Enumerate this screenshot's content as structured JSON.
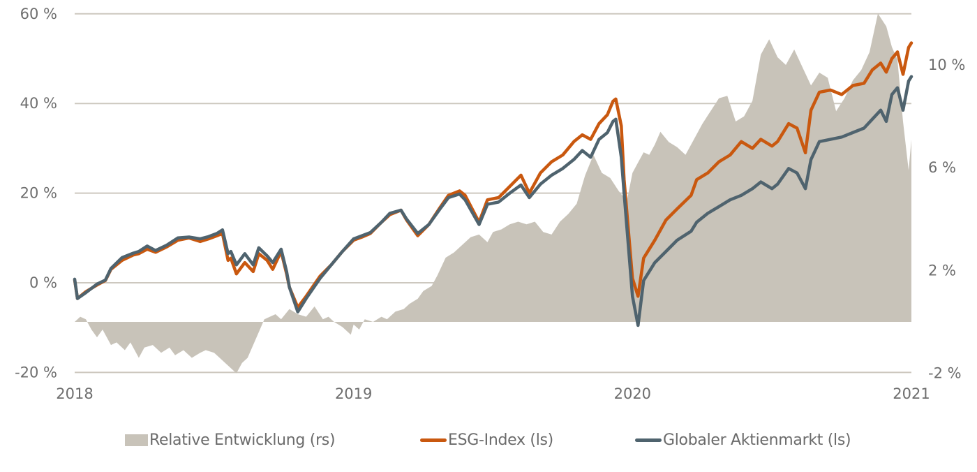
{
  "chart_data": {
    "type": "line",
    "title": "",
    "xlabel": "",
    "ylabel_left": "",
    "ylabel_right": "",
    "x_range": [
      2018.0,
      2021.0
    ],
    "x_ticks": [
      {
        "value": 2018,
        "label": "2018"
      },
      {
        "value": 2019,
        "label": "2019"
      },
      {
        "value": 2020,
        "label": "2020"
      },
      {
        "value": 2021,
        "label": "2021"
      }
    ],
    "y_left": {
      "range": [
        -20,
        60
      ],
      "ticks": [
        {
          "value": 60,
          "label": "60 %"
        },
        {
          "value": 40,
          "label": "40 %"
        },
        {
          "value": 20,
          "label": "20 %"
        },
        {
          "value": 0,
          "label": "0 %"
        },
        {
          "value": -20,
          "label": "-20 %"
        }
      ]
    },
    "y_right": {
      "range": [
        -2,
        12.5
      ],
      "ticks": [
        {
          "value": 10,
          "label": "10 %"
        },
        {
          "value": 6,
          "label": "6 %"
        },
        {
          "value": 2,
          "label": "2 %"
        },
        {
          "value": -2,
          "label": "-2 %"
        }
      ]
    },
    "grid": true,
    "legend_position": "bottom",
    "colors": {
      "relative": "#c8c3b9",
      "esg": "#c9580f",
      "global": "#4f636e",
      "grid": "#cdc8bf",
      "tick_text": "#6e6e6e"
    },
    "series": [
      {
        "name": "Relative Entwicklung (rs)",
        "type": "area",
        "axis": "right",
        "x": [
          2018.0,
          2018.02,
          2018.04,
          2018.06,
          2018.08,
          2018.1,
          2018.13,
          2018.15,
          2018.18,
          2018.2,
          2018.23,
          2018.25,
          2018.28,
          2018.31,
          2018.34,
          2018.36,
          2018.39,
          2018.42,
          2018.45,
          2018.47,
          2018.5,
          2018.53,
          2018.55,
          2018.58,
          2018.6,
          2018.62,
          2018.64,
          2018.66,
          2018.68,
          2018.7,
          2018.72,
          2018.74,
          2018.77,
          2018.8,
          2018.83,
          2018.86,
          2018.89,
          2018.91,
          2018.93,
          2018.96,
          2018.99,
          2019.0,
          2019.02,
          2019.04,
          2019.07,
          2019.1,
          2019.12,
          2019.15,
          2019.18,
          2019.2,
          2019.23,
          2019.25,
          2019.28,
          2019.3,
          2019.33,
          2019.36,
          2019.39,
          2019.42,
          2019.45,
          2019.48,
          2019.5,
          2019.53,
          2019.56,
          2019.59,
          2019.62,
          2019.65,
          2019.68,
          2019.71,
          2019.74,
          2019.77,
          2019.8,
          2019.83,
          2019.86,
          2019.89,
          2019.92,
          2019.95,
          2019.98,
          2020.0,
          2020.02,
          2020.04,
          2020.06,
          2020.08,
          2020.1,
          2020.13,
          2020.16,
          2020.19,
          2020.22,
          2020.25,
          2020.28,
          2020.31,
          2020.34,
          2020.37,
          2020.4,
          2020.43,
          2020.46,
          2020.49,
          2020.52,
          2020.55,
          2020.58,
          2020.61,
          2020.64,
          2020.67,
          2020.7,
          2020.73,
          2020.76,
          2020.79,
          2020.82,
          2020.85,
          2020.88,
          2020.91,
          2020.93,
          2020.95,
          2020.97,
          2020.99,
          2021.0
        ],
        "values": [
          0.0,
          0.2,
          0.1,
          -0.3,
          -0.6,
          -0.3,
          -0.9,
          -0.8,
          -1.1,
          -0.8,
          -1.4,
          -1.0,
          -0.9,
          -1.2,
          -1.0,
          -1.3,
          -1.1,
          -1.4,
          -1.2,
          -1.1,
          -1.2,
          -1.5,
          -1.7,
          -2.0,
          -1.6,
          -1.4,
          -0.9,
          -0.4,
          0.1,
          0.2,
          0.3,
          0.1,
          0.5,
          0.3,
          0.2,
          0.6,
          0.1,
          0.2,
          0.0,
          -0.2,
          -0.5,
          -0.1,
          -0.3,
          0.1,
          0.0,
          0.2,
          0.1,
          0.4,
          0.5,
          0.7,
          0.9,
          1.2,
          1.4,
          1.8,
          2.5,
          2.7,
          3.0,
          3.3,
          3.4,
          3.1,
          3.5,
          3.6,
          3.8,
          3.9,
          3.8,
          3.9,
          3.5,
          3.4,
          3.9,
          4.2,
          4.6,
          5.7,
          6.5,
          5.8,
          5.6,
          5.1,
          4.7,
          5.8,
          6.2,
          6.6,
          6.5,
          6.9,
          7.4,
          7.0,
          6.8,
          6.5,
          7.1,
          7.7,
          8.2,
          8.7,
          8.8,
          7.8,
          8.0,
          8.6,
          10.4,
          11.0,
          10.3,
          10.0,
          10.6,
          9.9,
          9.2,
          9.7,
          9.5,
          8.2,
          8.7,
          9.4,
          9.8,
          10.5,
          12.0,
          11.5,
          10.7,
          10.2,
          7.8,
          5.9,
          7.1
        ]
      },
      {
        "name": "ESG-Index (ls)",
        "type": "line",
        "axis": "left",
        "x": [
          2018.0,
          2018.01,
          2018.04,
          2018.08,
          2018.11,
          2018.13,
          2018.17,
          2018.21,
          2018.23,
          2018.26,
          2018.29,
          2018.33,
          2018.37,
          2018.41,
          2018.45,
          2018.48,
          2018.51,
          2018.53,
          2018.55,
          2018.56,
          2018.58,
          2018.61,
          2018.64,
          2018.66,
          2018.69,
          2018.71,
          2018.74,
          2018.76,
          2018.77,
          2018.8,
          2018.83,
          2018.88,
          2018.92,
          2018.96,
          2019.0,
          2019.03,
          2019.06,
          2019.1,
          2019.13,
          2019.17,
          2019.19,
          2019.23,
          2019.27,
          2019.31,
          2019.34,
          2019.38,
          2019.4,
          2019.45,
          2019.48,
          2019.52,
          2019.56,
          2019.6,
          2019.63,
          2019.67,
          2019.71,
          2019.75,
          2019.79,
          2019.82,
          2019.85,
          2019.88,
          2019.91,
          2019.93,
          2019.94,
          2019.96,
          2019.97,
          2020.0,
          2020.02,
          2020.04,
          2020.08,
          2020.12,
          2020.16,
          2020.21,
          2020.23,
          2020.27,
          2020.31,
          2020.35,
          2020.39,
          2020.43,
          2020.46,
          2020.5,
          2020.52,
          2020.56,
          2020.59,
          2020.62,
          2020.64,
          2020.67,
          2020.71,
          2020.75,
          2020.79,
          2020.83,
          2020.86,
          2020.89,
          2020.91,
          2020.93,
          2020.95,
          2020.97,
          2020.99,
          2021.0
        ],
        "values": [
          0.6,
          -3.5,
          -2.0,
          -0.5,
          0.5,
          3.0,
          5.0,
          6.2,
          6.5,
          7.5,
          6.8,
          8.0,
          9.5,
          10.0,
          9.2,
          9.8,
          10.5,
          11.0,
          5.0,
          5.5,
          2.0,
          4.5,
          2.5,
          6.5,
          5.0,
          3.0,
          7.0,
          2.0,
          -1.0,
          -5.5,
          -3.0,
          1.5,
          4.0,
          7.0,
          9.5,
          10.2,
          11.0,
          13.5,
          15.2,
          16.2,
          14.0,
          10.5,
          13.0,
          16.8,
          19.5,
          20.5,
          19.5,
          13.5,
          18.5,
          19.0,
          21.5,
          24.0,
          20.0,
          24.5,
          27.0,
          28.5,
          31.5,
          33.0,
          32.0,
          35.5,
          37.5,
          40.5,
          41.0,
          35.0,
          23.0,
          1.0,
          -3.0,
          5.5,
          9.5,
          14.0,
          16.5,
          19.5,
          23.0,
          24.5,
          27.0,
          28.5,
          31.5,
          30.0,
          32.0,
          30.5,
          31.5,
          35.5,
          34.5,
          29.0,
          38.5,
          42.5,
          43.0,
          42.0,
          44.0,
          44.5,
          47.5,
          49.0,
          47.0,
          50.0,
          51.5,
          46.5,
          52.5,
          53.5
        ]
      },
      {
        "name": "Globaler Aktienmarkt (ls)",
        "type": "line",
        "axis": "left",
        "x": [
          2018.0,
          2018.01,
          2018.04,
          2018.08,
          2018.11,
          2018.13,
          2018.17,
          2018.21,
          2018.23,
          2018.26,
          2018.29,
          2018.33,
          2018.37,
          2018.41,
          2018.45,
          2018.48,
          2018.51,
          2018.53,
          2018.55,
          2018.56,
          2018.58,
          2018.61,
          2018.64,
          2018.66,
          2018.69,
          2018.71,
          2018.74,
          2018.76,
          2018.77,
          2018.8,
          2018.83,
          2018.88,
          2018.92,
          2018.96,
          2019.0,
          2019.03,
          2019.06,
          2019.1,
          2019.13,
          2019.17,
          2019.19,
          2019.23,
          2019.27,
          2019.31,
          2019.34,
          2019.38,
          2019.4,
          2019.45,
          2019.48,
          2019.52,
          2019.56,
          2019.6,
          2019.63,
          2019.67,
          2019.71,
          2019.75,
          2019.79,
          2019.82,
          2019.85,
          2019.88,
          2019.91,
          2019.93,
          2019.94,
          2019.96,
          2019.97,
          2020.0,
          2020.02,
          2020.04,
          2020.08,
          2020.12,
          2020.16,
          2020.21,
          2020.23,
          2020.27,
          2020.31,
          2020.35,
          2020.39,
          2020.43,
          2020.46,
          2020.5,
          2020.52,
          2020.56,
          2020.59,
          2020.62,
          2020.64,
          2020.67,
          2020.71,
          2020.75,
          2020.79,
          2020.83,
          2020.86,
          2020.89,
          2020.91,
          2020.93,
          2020.95,
          2020.97,
          2020.99,
          2021.0
        ],
        "values": [
          0.8,
          -3.5,
          -2.2,
          -0.3,
          0.6,
          3.2,
          5.6,
          6.6,
          7.0,
          8.2,
          7.2,
          8.4,
          10.0,
          10.2,
          9.8,
          10.3,
          11.0,
          11.8,
          6.5,
          7.0,
          4.0,
          6.5,
          4.0,
          7.8,
          6.0,
          4.5,
          7.5,
          2.5,
          -1.0,
          -6.5,
          -3.5,
          1.0,
          4.0,
          7.0,
          9.8,
          10.5,
          11.2,
          13.5,
          15.5,
          16.2,
          14.2,
          11.0,
          13.0,
          16.5,
          19.0,
          19.8,
          18.5,
          13.0,
          17.5,
          18.0,
          20.0,
          21.8,
          19.0,
          22.0,
          24.0,
          25.5,
          27.5,
          29.5,
          28.0,
          32.0,
          33.5,
          36.0,
          36.5,
          28.0,
          20.0,
          -3.0,
          -9.5,
          0.5,
          4.5,
          7.0,
          9.5,
          11.5,
          13.5,
          15.5,
          17.0,
          18.5,
          19.5,
          21.0,
          22.5,
          21.0,
          22.0,
          25.5,
          24.5,
          21.0,
          27.5,
          31.5,
          32.0,
          32.5,
          33.5,
          34.5,
          36.5,
          38.5,
          36.0,
          42.0,
          43.5,
          38.5,
          45.0,
          46.0
        ]
      }
    ]
  },
  "legend": {
    "items": [
      {
        "label": "Relative Entwicklung (rs)",
        "kind": "area"
      },
      {
        "label": "ESG-Index (ls)",
        "kind": "line"
      },
      {
        "label": "Globaler Aktienmarkt (ls)",
        "kind": "line"
      }
    ]
  }
}
